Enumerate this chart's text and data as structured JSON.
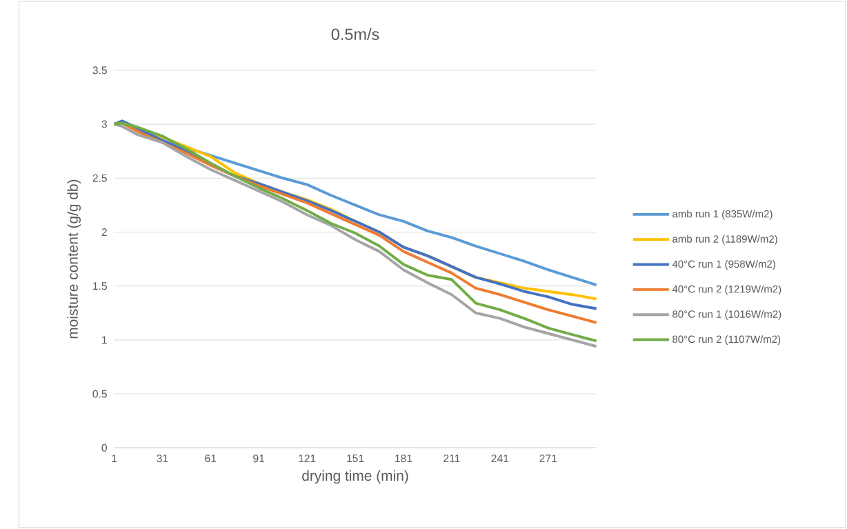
{
  "chart_data": {
    "type": "line",
    "title": "0.5m/s",
    "xlabel": "drying time (min)",
    "ylabel": "moisture content (g/g db)",
    "x": [
      1,
      6,
      16,
      31,
      46,
      61,
      76,
      91,
      106,
      121,
      136,
      151,
      166,
      181,
      196,
      211,
      226,
      241,
      256,
      271,
      286,
      301
    ],
    "series": [
      {
        "name": "amb run 1 (835W/m2)",
        "color": "#5b9bd5",
        "values": [
          3.0,
          3.02,
          2.95,
          2.85,
          2.78,
          2.71,
          2.64,
          2.57,
          2.5,
          2.44,
          2.34,
          2.25,
          2.16,
          2.1,
          2.01,
          1.95,
          1.87,
          1.8,
          1.73,
          1.65,
          1.58,
          1.51
        ]
      },
      {
        "name": "amb run 2 (1189W/m2)",
        "color": "#ffc000",
        "values": [
          null,
          null,
          2.97,
          2.88,
          2.79,
          2.7,
          2.55,
          2.45,
          2.37,
          2.3,
          2.21,
          2.1,
          2.0,
          1.86,
          1.78,
          1.68,
          1.58,
          1.53,
          1.48,
          1.45,
          1.42,
          1.38
        ]
      },
      {
        "name": "40°C run 1 (958W/m2)",
        "color": "#4472c4",
        "values": [
          3.0,
          3.03,
          2.96,
          2.85,
          2.75,
          2.62,
          2.52,
          2.45,
          2.37,
          2.29,
          2.2,
          2.1,
          2.0,
          1.86,
          1.78,
          1.68,
          1.58,
          1.52,
          1.45,
          1.4,
          1.33,
          1.29
        ]
      },
      {
        "name": "40°C run 2 (1219W/m2)",
        "color": "#ed7d31",
        "values": [
          3.0,
          3.01,
          2.93,
          2.83,
          2.73,
          2.62,
          2.52,
          2.43,
          2.35,
          2.27,
          2.17,
          2.07,
          1.97,
          1.82,
          1.72,
          1.62,
          1.48,
          1.42,
          1.35,
          1.28,
          1.22,
          1.16
        ]
      },
      {
        "name": "80°C run 1 (1016W/m2)",
        "color": "#a5a5a5",
        "values": [
          3.0,
          2.98,
          2.9,
          2.83,
          2.7,
          2.58,
          2.48,
          2.38,
          2.28,
          2.16,
          2.06,
          1.93,
          1.82,
          1.65,
          1.53,
          1.42,
          1.25,
          1.2,
          1.12,
          1.06,
          1.0,
          0.94
        ]
      },
      {
        "name": "80°C run 2 (1107W/m2)",
        "color": "#70ad47",
        "values": [
          3.0,
          3.01,
          2.97,
          2.89,
          2.77,
          2.64,
          2.52,
          2.41,
          2.31,
          2.2,
          2.08,
          1.99,
          1.87,
          1.7,
          1.6,
          1.56,
          1.34,
          1.28,
          1.2,
          1.11,
          1.05,
          0.99
        ]
      }
    ],
    "xlim": [
      1,
      301
    ],
    "xticks": [
      1,
      31,
      61,
      91,
      121,
      151,
      181,
      211,
      241,
      271
    ],
    "ylim": [
      0,
      3.5
    ],
    "yticks": [
      0,
      0.5,
      1,
      1.5,
      2,
      2.5,
      3,
      3.5
    ],
    "grid": "y",
    "legend": "right",
    "marker": "none",
    "line_style": "solid"
  }
}
